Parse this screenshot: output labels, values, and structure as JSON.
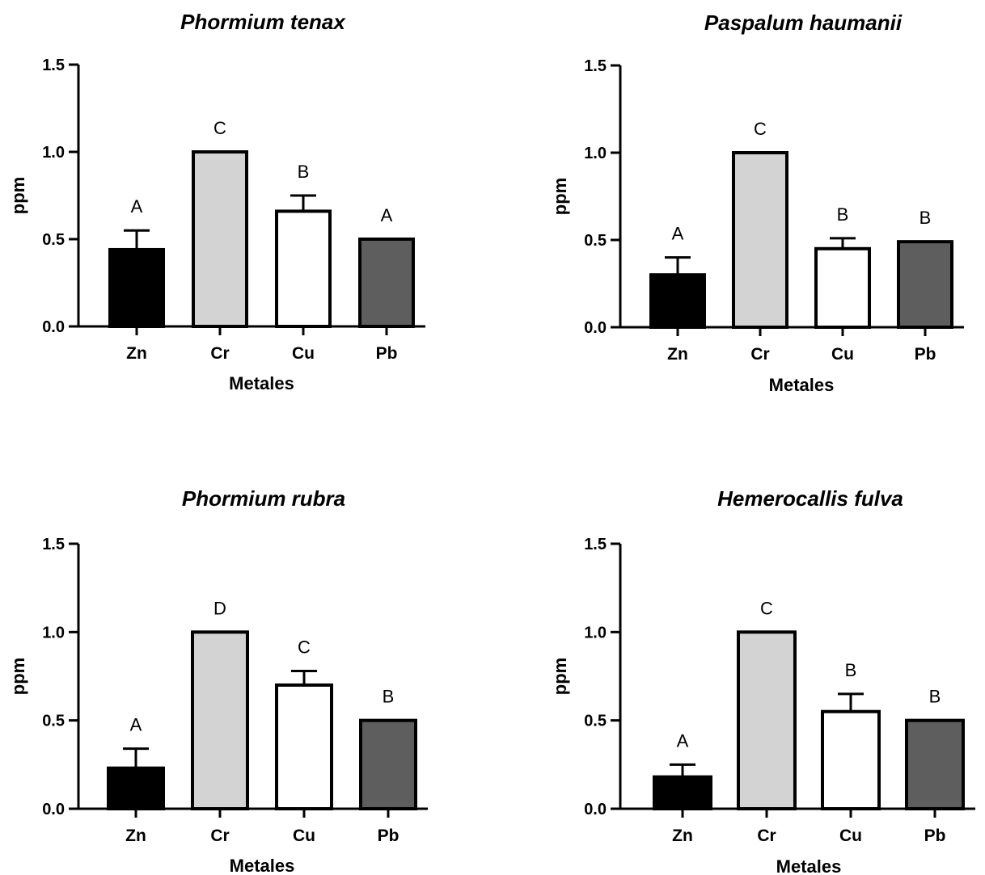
{
  "colors": {
    "Zn": "#000000",
    "Cr": "#d3d3d3",
    "Cu": "#ffffff",
    "Pb": "#5e5e5e",
    "stroke": "#000000"
  },
  "chart_data": [
    {
      "type": "bar",
      "title": "Phormium tenax",
      "xlabel": "Metales",
      "ylabel": "ppm",
      "categories": [
        "Zn",
        "Cr",
        "Cu",
        "Pb"
      ],
      "values": [
        0.44,
        1.0,
        0.66,
        0.5
      ],
      "errors": [
        0.11,
        0.0,
        0.09,
        0.0
      ],
      "significance": [
        "A",
        "C",
        "B",
        "A"
      ],
      "ylim": [
        0,
        1.5
      ],
      "yticks": [
        "0.0",
        "0.5",
        "1.0",
        "1.5"
      ],
      "grid": false
    },
    {
      "type": "bar",
      "title": "Paspalum haumanii",
      "xlabel": "Metales",
      "ylabel": "ppm",
      "categories": [
        "Zn",
        "Cr",
        "Cu",
        "Pb"
      ],
      "values": [
        0.3,
        1.0,
        0.45,
        0.49
      ],
      "errors": [
        0.1,
        0.0,
        0.06,
        0.0
      ],
      "significance": [
        "A",
        "C",
        "B",
        "B"
      ],
      "ylim": [
        0,
        1.5
      ],
      "yticks": [
        "0.0",
        "0.5",
        "1.0",
        "1.5"
      ],
      "grid": false
    },
    {
      "type": "bar",
      "title": "Phormium rubra",
      "xlabel": "Metales",
      "ylabel": "ppm",
      "categories": [
        "Zn",
        "Cr",
        "Cu",
        "Pb"
      ],
      "values": [
        0.23,
        1.0,
        0.7,
        0.5
      ],
      "errors": [
        0.11,
        0.0,
        0.08,
        0.0
      ],
      "significance": [
        "A",
        "D",
        "C",
        "B"
      ],
      "ylim": [
        0,
        1.5
      ],
      "yticks": [
        "0.0",
        "0.5",
        "1.0",
        "1.5"
      ],
      "grid": false
    },
    {
      "type": "bar",
      "title": "Hemerocallis fulva",
      "xlabel": "Metales",
      "ylabel": "ppm",
      "categories": [
        "Zn",
        "Cr",
        "Cu",
        "Pb"
      ],
      "values": [
        0.18,
        1.0,
        0.55,
        0.5
      ],
      "errors": [
        0.07,
        0.0,
        0.1,
        0.0
      ],
      "significance": [
        "A",
        "C",
        "B",
        "B"
      ],
      "ylim": [
        0,
        1.5
      ],
      "yticks": [
        "0.0",
        "0.5",
        "1.0",
        "1.5"
      ],
      "grid": false
    }
  ]
}
